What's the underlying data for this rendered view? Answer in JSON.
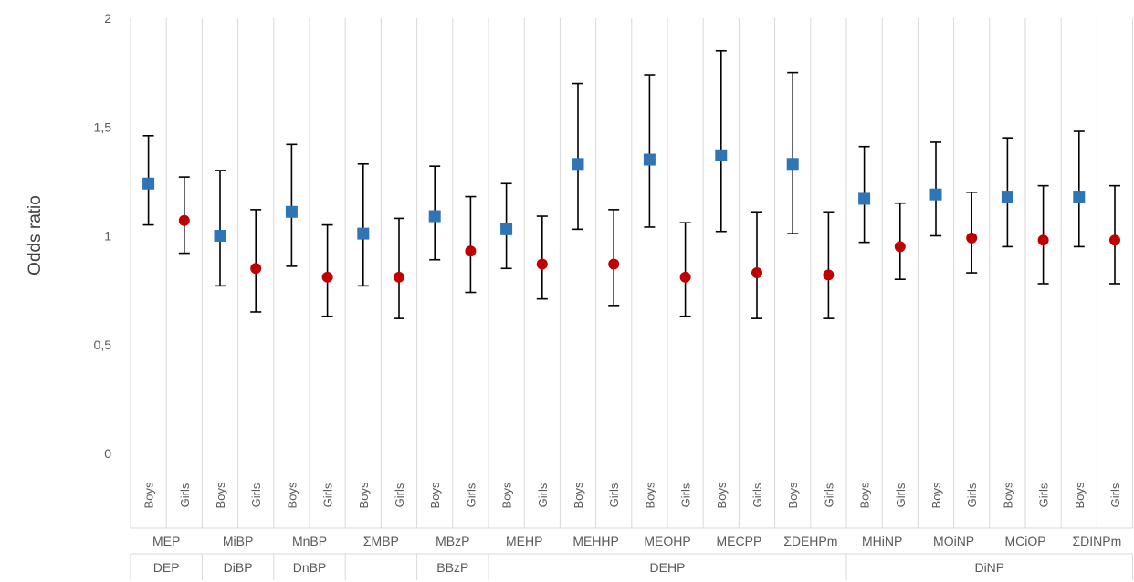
{
  "chart_data": {
    "type": "scatter",
    "ylabel": "Odds ratio",
    "ylim": [
      0,
      2
    ],
    "yticks": [
      "0",
      "0,5",
      "1",
      "1,5",
      "2"
    ],
    "ytick_values": [
      0,
      0.5,
      1,
      1.5,
      2
    ],
    "grid": "vertical category gridlines",
    "colors": {
      "Boys": "#2e75b6",
      "Girls": "#c00000"
    },
    "metabolites": [
      "MEP",
      "MiBP",
      "MnBP",
      "ΣMBP",
      "MBzP",
      "MEHP",
      "MEHHP",
      "MEOHP",
      "MECPP",
      "ΣDEHPm",
      "MHiNP",
      "MOiNP",
      "MCiOP",
      "ΣDINPm"
    ],
    "parent_groups": [
      {
        "label": "DEP",
        "span": 1
      },
      {
        "label": "DiBP",
        "span": 1
      },
      {
        "label": "DnBP",
        "span": 1
      },
      {
        "label": "",
        "span": 1
      },
      {
        "label": "BBzP",
        "span": 1
      },
      {
        "label": "DEHP",
        "span": 5
      },
      {
        "label": "DiNP",
        "span": 4
      }
    ],
    "sexes": [
      "Boys",
      "Girls"
    ],
    "points": [
      {
        "metabolite": "MEP",
        "sex": "Boys",
        "or": 1.24,
        "lower": 1.05,
        "upper": 1.46
      },
      {
        "metabolite": "MEP",
        "sex": "Girls",
        "or": 1.07,
        "lower": 0.92,
        "upper": 1.27
      },
      {
        "metabolite": "MiBP",
        "sex": "Boys",
        "or": 1.0,
        "lower": 0.77,
        "upper": 1.3
      },
      {
        "metabolite": "MiBP",
        "sex": "Girls",
        "or": 0.85,
        "lower": 0.65,
        "upper": 1.12
      },
      {
        "metabolite": "MnBP",
        "sex": "Boys",
        "or": 1.11,
        "lower": 0.86,
        "upper": 1.42
      },
      {
        "metabolite": "MnBP",
        "sex": "Girls",
        "or": 0.81,
        "lower": 0.63,
        "upper": 1.05
      },
      {
        "metabolite": "ΣMBP",
        "sex": "Boys",
        "or": 1.01,
        "lower": 0.77,
        "upper": 1.33
      },
      {
        "metabolite": "ΣMBP",
        "sex": "Girls",
        "or": 0.81,
        "lower": 0.62,
        "upper": 1.08
      },
      {
        "metabolite": "MBzP",
        "sex": "Boys",
        "or": 1.09,
        "lower": 0.89,
        "upper": 1.32
      },
      {
        "metabolite": "MBzP",
        "sex": "Girls",
        "or": 0.93,
        "lower": 0.74,
        "upper": 1.18
      },
      {
        "metabolite": "MEHP",
        "sex": "Boys",
        "or": 1.03,
        "lower": 0.85,
        "upper": 1.24
      },
      {
        "metabolite": "MEHP",
        "sex": "Girls",
        "or": 0.87,
        "lower": 0.71,
        "upper": 1.09
      },
      {
        "metabolite": "MEHHP",
        "sex": "Boys",
        "or": 1.33,
        "lower": 1.03,
        "upper": 1.7
      },
      {
        "metabolite": "MEHHP",
        "sex": "Girls",
        "or": 0.87,
        "lower": 0.68,
        "upper": 1.12
      },
      {
        "metabolite": "MEOHP",
        "sex": "Boys",
        "or": 1.35,
        "lower": 1.04,
        "upper": 1.74
      },
      {
        "metabolite": "MEOHP",
        "sex": "Girls",
        "or": 0.81,
        "lower": 0.63,
        "upper": 1.06
      },
      {
        "metabolite": "MECPP",
        "sex": "Boys",
        "or": 1.37,
        "lower": 1.02,
        "upper": 1.85
      },
      {
        "metabolite": "MECPP",
        "sex": "Girls",
        "or": 0.83,
        "lower": 0.62,
        "upper": 1.11
      },
      {
        "metabolite": "ΣDEHPm",
        "sex": "Boys",
        "or": 1.33,
        "lower": 1.01,
        "upper": 1.75
      },
      {
        "metabolite": "ΣDEHPm",
        "sex": "Girls",
        "or": 0.82,
        "lower": 0.62,
        "upper": 1.11
      },
      {
        "metabolite": "MHiNP",
        "sex": "Boys",
        "or": 1.17,
        "lower": 0.97,
        "upper": 1.41
      },
      {
        "metabolite": "MHiNP",
        "sex": "Girls",
        "or": 0.95,
        "lower": 0.8,
        "upper": 1.15
      },
      {
        "metabolite": "MOiNP",
        "sex": "Boys",
        "or": 1.19,
        "lower": 1.0,
        "upper": 1.43
      },
      {
        "metabolite": "MOiNP",
        "sex": "Girls",
        "or": 0.99,
        "lower": 0.83,
        "upper": 1.2
      },
      {
        "metabolite": "MCiOP",
        "sex": "Boys",
        "or": 1.18,
        "lower": 0.95,
        "upper": 1.45
      },
      {
        "metabolite": "MCiOP",
        "sex": "Girls",
        "or": 0.98,
        "lower": 0.78,
        "upper": 1.23
      },
      {
        "metabolite": "ΣDINPm",
        "sex": "Boys",
        "or": 1.18,
        "lower": 0.95,
        "upper": 1.48
      },
      {
        "metabolite": "ΣDINPm",
        "sex": "Girls",
        "or": 0.98,
        "lower": 0.78,
        "upper": 1.23
      }
    ]
  }
}
